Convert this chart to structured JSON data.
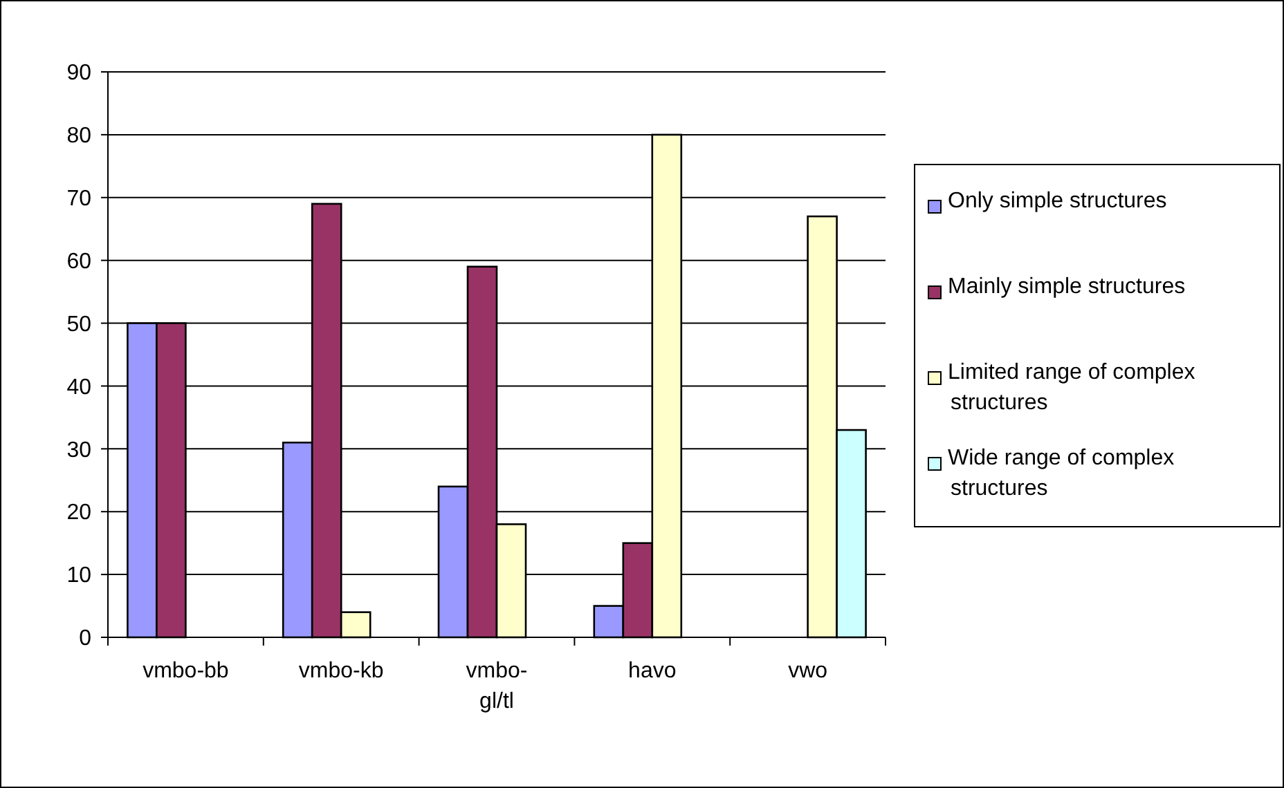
{
  "chart_data": {
    "type": "bar",
    "categories": [
      "vmbo-bb",
      "vmbo-kb",
      "vmbo-gl/tl",
      "havo",
      "vwo"
    ],
    "series": [
      {
        "name": "Only simple structures",
        "color": "#9999ff",
        "values": [
          50,
          31,
          24,
          5,
          null
        ]
      },
      {
        "name": "Mainly simple structures",
        "color": "#993366",
        "values": [
          50,
          69,
          59,
          15,
          null
        ]
      },
      {
        "name": "Limited range of complex structures",
        "color": "#ffffcc",
        "values": [
          null,
          4,
          18,
          80,
          67
        ]
      },
      {
        "name": "Wide range of complex structures",
        "color": "#ccffff",
        "values": [
          null,
          null,
          null,
          null,
          33
        ]
      }
    ],
    "ylim": [
      0,
      90
    ],
    "yticks": [
      0,
      10,
      20,
      30,
      40,
      50,
      60,
      70,
      80,
      90
    ],
    "grid": "y",
    "legend": "right"
  }
}
